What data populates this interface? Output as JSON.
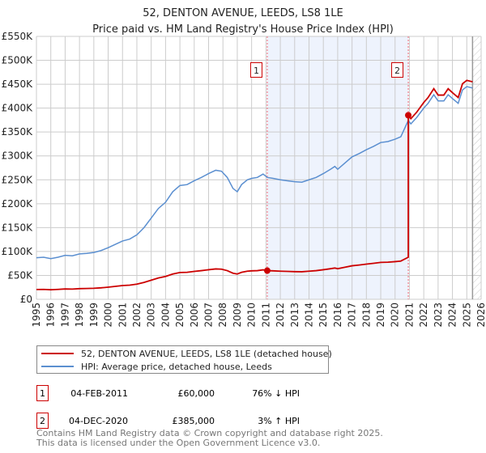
{
  "chart_data": {
    "type": "line",
    "title": "52, DENTON AVENUE, LEEDS, LS8 1LE",
    "subtitle": "Price paid vs. HM Land Registry's House Price Index (HPI)",
    "xlabel": "",
    "ylabel": "",
    "xlim": [
      1995,
      2026
    ],
    "ylim": [
      0,
      550000
    ],
    "grid": true,
    "y_ticks": [
      0,
      50000,
      100000,
      150000,
      200000,
      250000,
      300000,
      350000,
      400000,
      450000,
      500000,
      550000
    ],
    "y_tick_labels": [
      "£0",
      "£50K",
      "£100K",
      "£150K",
      "£200K",
      "£250K",
      "£300K",
      "£350K",
      "£400K",
      "£450K",
      "£500K",
      "£550K"
    ],
    "x_ticks": [
      1995,
      1996,
      1997,
      1998,
      1999,
      2000,
      2001,
      2002,
      2003,
      2004,
      2005,
      2006,
      2007,
      2008,
      2009,
      2010,
      2011,
      2012,
      2013,
      2014,
      2015,
      2016,
      2017,
      2018,
      2019,
      2020,
      2021,
      2022,
      2023,
      2024,
      2025,
      2026
    ],
    "x_tick_labels": [
      "1995",
      "1996",
      "1997",
      "1998",
      "1999",
      "2000",
      "2001",
      "2002",
      "2003",
      "2004",
      "2005",
      "2006",
      "2007",
      "2008",
      "2009",
      "2010",
      "2011",
      "2012",
      "2013",
      "2014",
      "2015",
      "2016",
      "2017",
      "2018",
      "2019",
      "2020",
      "2021",
      "2022",
      "2023",
      "2024",
      "2025",
      "2026"
    ],
    "shaded_range": [
      2011.09,
      2020.92
    ],
    "forecast_hatch_from": 2025.4,
    "legend_position": "below",
    "series": [
      {
        "name": "52, DENTON AVENUE, LEEDS, LS8 1LE (detached house)",
        "color": "#cc0000",
        "derived_from": "hpi_indexed_to_sales"
      },
      {
        "name": "HPI: Average price, detached house, Leeds",
        "color": "#5b8fd0",
        "x": [
          1995,
          1995.5,
          1996,
          1996.5,
          1997,
          1997.5,
          1998,
          1998.5,
          1999,
          1999.5,
          2000,
          2000.5,
          2001,
          2001.5,
          2002,
          2002.5,
          2003,
          2003.5,
          2004,
          2004.5,
          2005,
          2005.5,
          2006,
          2006.5,
          2007,
          2007.5,
          2007.9,
          2008.3,
          2008.7,
          2009,
          2009.3,
          2009.7,
          2010,
          2010.4,
          2010.8,
          2011.09,
          2011.5,
          2012,
          2012.5,
          2013,
          2013.5,
          2014,
          2014.5,
          2015,
          2015.5,
          2015.8,
          2016,
          2016.5,
          2017,
          2017.5,
          2018,
          2018.5,
          2019,
          2019.5,
          2020,
          2020.4,
          2020.92,
          2021.1,
          2021.5,
          2022,
          2022.3,
          2022.7,
          2023,
          2023.4,
          2023.7,
          2024,
          2024.4,
          2024.7,
          2025,
          2025.4
        ],
        "values": [
          87000,
          88000,
          85000,
          88000,
          92000,
          91000,
          95000,
          96000,
          98000,
          102000,
          108000,
          115000,
          122000,
          126000,
          135000,
          150000,
          170000,
          190000,
          203000,
          225000,
          238000,
          240000,
          248000,
          255000,
          263000,
          270000,
          268000,
          255000,
          232000,
          225000,
          240000,
          250000,
          253000,
          255000,
          262000,
          255000,
          253000,
          250000,
          248000,
          246000,
          245000,
          250000,
          255000,
          263000,
          272000,
          278000,
          272000,
          285000,
          298000,
          305000,
          313000,
          320000,
          328000,
          330000,
          335000,
          340000,
          374000,
          367000,
          380000,
          400000,
          410000,
          428000,
          415000,
          415000,
          428000,
          420000,
          410000,
          438000,
          445000,
          442000
        ]
      }
    ],
    "sales": [
      {
        "id": "1",
        "x": 2011.09,
        "date": "04-FEB-2011",
        "price": 60000,
        "price_label": "£60,000",
        "hpi_delta": "76% ↓ HPI"
      },
      {
        "id": "2",
        "x": 2020.92,
        "date": "04-DEC-2020",
        "price": 385000,
        "price_label": "£385,000",
        "hpi_delta": "3% ↑ HPI"
      }
    ]
  },
  "footer": {
    "line1": "Contains HM Land Registry data © Crown copyright and database right 2025.",
    "line2": "This data is licensed under the Open Government Licence v3.0."
  }
}
